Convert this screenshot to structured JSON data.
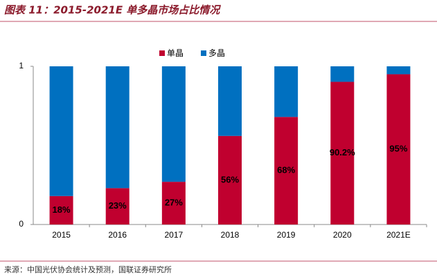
{
  "chart_data": {
    "type": "stacked_bar",
    "title": "图表 11：2015-2021E 单多晶市场占比情况",
    "source": "来源：中国光伏协会统计及预测，国联证券研究所",
    "categories": [
      "2015",
      "2016",
      "2017",
      "2018",
      "2019",
      "2020",
      "2021E"
    ],
    "series": [
      {
        "name": "单晶",
        "color": "#c0002f",
        "values": [
          0.18,
          0.23,
          0.27,
          0.56,
          0.68,
          0.902,
          0.95
        ],
        "value_labels": [
          "18%",
          "23%",
          "27%",
          "56%",
          "68%",
          "90.2%",
          "95%"
        ]
      },
      {
        "name": "多晶",
        "color": "#0070c0",
        "values": [
          0.82,
          0.77,
          0.73,
          0.44,
          0.32,
          0.098,
          0.05
        ]
      }
    ],
    "ylim": [
      0,
      1
    ],
    "yticks": [
      0,
      1
    ],
    "legend": "top"
  }
}
